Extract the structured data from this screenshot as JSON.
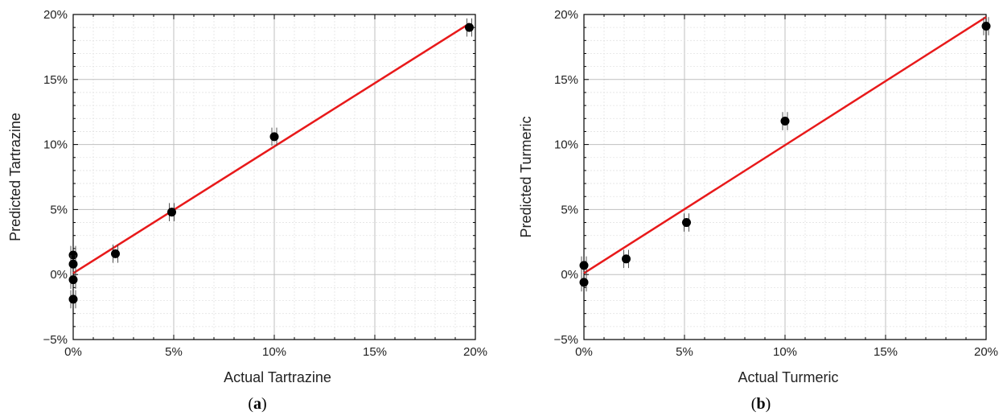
{
  "chart_data": [
    {
      "type": "scatter",
      "panel_label": "a",
      "xlabel": "Actual Tartrazine",
      "ylabel": "Predicted Tartrazine",
      "xlim": [
        0,
        20
      ],
      "ylim": [
        -5,
        20
      ],
      "xticks": [
        0,
        5,
        10,
        15,
        20
      ],
      "yticks": [
        -5,
        0,
        5,
        10,
        15,
        20
      ],
      "xtick_labels": [
        "0%",
        "5%",
        "10%",
        "15%",
        "20%"
      ],
      "ytick_labels": [
        "−5%",
        "0%",
        "5%",
        "10%",
        "15%",
        "20%"
      ],
      "grid": true,
      "points": [
        {
          "x": 0.0,
          "y": 1.5,
          "err": 0.7
        },
        {
          "x": 0.0,
          "y": 0.8,
          "err": 0.7
        },
        {
          "x": 0.0,
          "y": -0.4,
          "err": 0.7
        },
        {
          "x": 0.0,
          "y": -1.9,
          "err": 0.7
        },
        {
          "x": 2.1,
          "y": 1.6,
          "err": 0.7
        },
        {
          "x": 4.9,
          "y": 4.8,
          "err": 0.7
        },
        {
          "x": 10.0,
          "y": 10.6,
          "err": 0.7
        },
        {
          "x": 19.7,
          "y": 19.0,
          "err": 0.7
        }
      ],
      "fit_line": {
        "x": [
          0,
          19.7
        ],
        "y": [
          0.1,
          19.3
        ],
        "color": "#e8191a"
      }
    },
    {
      "type": "scatter",
      "panel_label": "b",
      "xlabel": "Actual Turmeric",
      "ylabel": "Predicted Turmeric",
      "xlim": [
        0,
        20
      ],
      "ylim": [
        -5,
        20
      ],
      "xticks": [
        0,
        5,
        10,
        15,
        20
      ],
      "yticks": [
        -5,
        0,
        5,
        10,
        15,
        20
      ],
      "xtick_labels": [
        "0%",
        "5%",
        "10%",
        "15%",
        "20%"
      ],
      "ytick_labels": [
        "−5%",
        "0%",
        "5%",
        "10%",
        "15%",
        "20%"
      ],
      "grid": true,
      "points": [
        {
          "x": 0.0,
          "y": 0.7,
          "err": 0.7
        },
        {
          "x": 0.0,
          "y": -0.6,
          "err": 0.7
        },
        {
          "x": 2.1,
          "y": 1.2,
          "err": 0.7
        },
        {
          "x": 5.1,
          "y": 4.0,
          "err": 0.7
        },
        {
          "x": 10.0,
          "y": 11.8,
          "err": 0.7
        },
        {
          "x": 20.0,
          "y": 19.1,
          "err": 0.7
        }
      ],
      "fit_line": {
        "x": [
          0,
          20
        ],
        "y": [
          0.1,
          19.8
        ],
        "color": "#e8191a"
      }
    }
  ]
}
